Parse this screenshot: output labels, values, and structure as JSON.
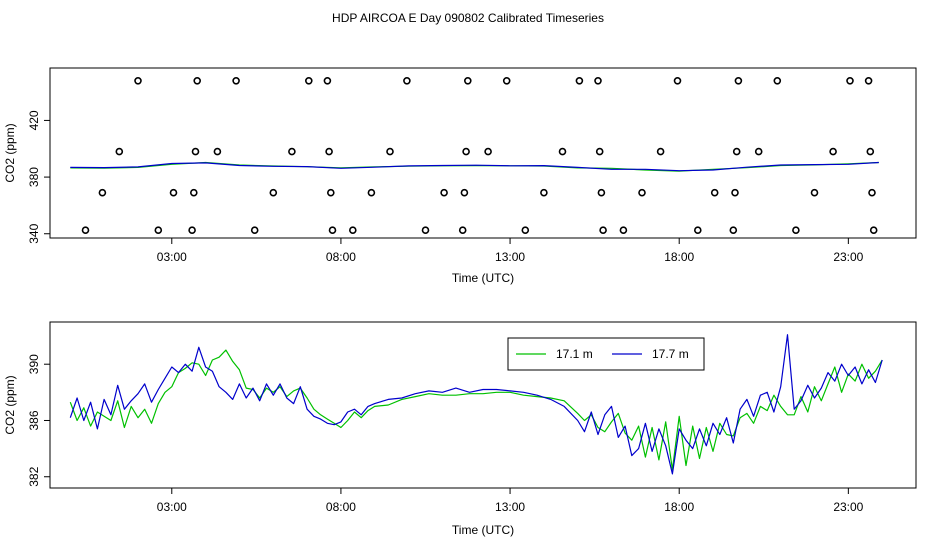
{
  "figure": {
    "title": "HDP AIRCOA E  Day 090802  Calibrated Timeseries"
  },
  "colors": {
    "series_a": "#00c000",
    "series_b": "#0000cc",
    "markers": "#000000",
    "frame": "#000000"
  },
  "chart_data": [
    {
      "id": "top",
      "type": "line",
      "title": "",
      "xlabel": "Time (UTC)",
      "ylabel": "CO2 (ppm)",
      "xlim": [
        -0.6,
        25.0
      ],
      "ylim": [
        337,
        457
      ],
      "x_ticks": [
        3,
        8,
        13,
        18,
        23
      ],
      "x_tick_labels": [
        "03:00",
        "08:00",
        "13:00",
        "18:00",
        "23:00"
      ],
      "y_ticks": [
        340,
        380,
        420
      ],
      "y_tick_labels": [
        "340",
        "380",
        "420"
      ],
      "series": [
        {
          "name": "17.1 m",
          "color": "#00c000",
          "x": [
            0.0,
            1.0,
            2.0,
            3.0,
            4.0,
            5.0,
            6.0,
            7.0,
            8.0,
            9.0,
            10.0,
            11.0,
            12.0,
            13.0,
            14.0,
            15.0,
            16.0,
            17.0,
            18.0,
            19.0,
            20.0,
            21.0,
            22.0,
            23.0,
            23.9
          ],
          "values": [
            386.5,
            386.3,
            386.8,
            389.0,
            390.3,
            388.5,
            387.8,
            387.3,
            386.5,
            387.2,
            387.7,
            388.0,
            388.1,
            388.0,
            387.8,
            386.5,
            386.2,
            385.0,
            384.2,
            385.5,
            386.6,
            388.2,
            388.6,
            389.4,
            390.3
          ]
        },
        {
          "name": "17.7 m",
          "color": "#0000cc",
          "x": [
            0.0,
            1.0,
            2.0,
            3.0,
            4.0,
            5.0,
            6.0,
            7.0,
            8.0,
            9.0,
            10.0,
            11.0,
            12.0,
            13.0,
            14.0,
            15.0,
            16.0,
            17.0,
            18.0,
            19.0,
            20.0,
            21.0,
            22.0,
            23.0,
            23.9
          ],
          "values": [
            386.8,
            386.7,
            387.2,
            389.6,
            390.0,
            388.2,
            387.6,
            387.4,
            386.2,
            387.0,
            387.9,
            388.2,
            388.4,
            388.0,
            388.1,
            386.8,
            385.5,
            385.5,
            384.5,
            385.0,
            387.0,
            388.5,
            388.8,
            389.0,
            390.3
          ]
        }
      ],
      "markers": {
        "shape": "open-circle",
        "points": [
          {
            "x": 0.45,
            "y": 342.5
          },
          {
            "x": 0.95,
            "y": 369
          },
          {
            "x": 1.45,
            "y": 398
          },
          {
            "x": 2.0,
            "y": 448
          },
          {
            "x": 2.6,
            "y": 342.5
          },
          {
            "x": 3.05,
            "y": 369
          },
          {
            "x": 3.6,
            "y": 342.5
          },
          {
            "x": 3.65,
            "y": 369
          },
          {
            "x": 3.7,
            "y": 398
          },
          {
            "x": 3.75,
            "y": 448
          },
          {
            "x": 4.35,
            "y": 398
          },
          {
            "x": 4.9,
            "y": 448
          },
          {
            "x": 5.45,
            "y": 342.5
          },
          {
            "x": 6.0,
            "y": 369
          },
          {
            "x": 6.55,
            "y": 398
          },
          {
            "x": 7.05,
            "y": 448
          },
          {
            "x": 7.6,
            "y": 448
          },
          {
            "x": 7.65,
            "y": 398
          },
          {
            "x": 7.7,
            "y": 369
          },
          {
            "x": 7.75,
            "y": 342.5
          },
          {
            "x": 8.35,
            "y": 342.5
          },
          {
            "x": 8.9,
            "y": 369
          },
          {
            "x": 9.45,
            "y": 398
          },
          {
            "x": 9.95,
            "y": 448
          },
          {
            "x": 10.5,
            "y": 342.5
          },
          {
            "x": 11.05,
            "y": 369
          },
          {
            "x": 11.6,
            "y": 342.5
          },
          {
            "x": 11.65,
            "y": 369
          },
          {
            "x": 11.7,
            "y": 398
          },
          {
            "x": 11.75,
            "y": 448
          },
          {
            "x": 12.35,
            "y": 398
          },
          {
            "x": 12.9,
            "y": 448
          },
          {
            "x": 13.45,
            "y": 342.5
          },
          {
            "x": 14.0,
            "y": 369
          },
          {
            "x": 14.55,
            "y": 398
          },
          {
            "x": 15.05,
            "y": 448
          },
          {
            "x": 15.6,
            "y": 448
          },
          {
            "x": 15.65,
            "y": 398
          },
          {
            "x": 15.7,
            "y": 369
          },
          {
            "x": 15.75,
            "y": 342.5
          },
          {
            "x": 16.35,
            "y": 342.5
          },
          {
            "x": 16.9,
            "y": 369
          },
          {
            "x": 17.45,
            "y": 398
          },
          {
            "x": 17.95,
            "y": 448
          },
          {
            "x": 18.55,
            "y": 342.5
          },
          {
            "x": 19.05,
            "y": 369
          },
          {
            "x": 19.6,
            "y": 342.5
          },
          {
            "x": 19.65,
            "y": 369
          },
          {
            "x": 19.7,
            "y": 398
          },
          {
            "x": 19.75,
            "y": 448
          },
          {
            "x": 20.35,
            "y": 398
          },
          {
            "x": 20.9,
            "y": 448
          },
          {
            "x": 21.45,
            "y": 342.5
          },
          {
            "x": 22.0,
            "y": 369
          },
          {
            "x": 22.55,
            "y": 398
          },
          {
            "x": 23.05,
            "y": 448
          },
          {
            "x": 23.6,
            "y": 448
          },
          {
            "x": 23.65,
            "y": 398
          },
          {
            "x": 23.7,
            "y": 369
          },
          {
            "x": 23.75,
            "y": 342.5
          }
        ]
      }
    },
    {
      "id": "bottom",
      "type": "line",
      "title": "",
      "xlabel": "Time (UTC)",
      "ylabel": "CO2 (ppm)",
      "xlim": [
        -0.6,
        25.0
      ],
      "ylim": [
        381.2,
        393.0
      ],
      "x_ticks": [
        3,
        8,
        13,
        18,
        23
      ],
      "x_tick_labels": [
        "03:00",
        "08:00",
        "13:00",
        "18:00",
        "23:00"
      ],
      "y_ticks": [
        382,
        386,
        390
      ],
      "y_tick_labels": [
        "382",
        "386",
        "390"
      ],
      "legend": {
        "position": "top-right",
        "entries": [
          {
            "label": "17.1 m",
            "color": "#00c000"
          },
          {
            "label": "17.7 m",
            "color": "#0000cc"
          }
        ]
      },
      "series": [
        {
          "name": "17.1 m",
          "color": "#00c000",
          "x": [
            0.0,
            0.2,
            0.4,
            0.6,
            0.8,
            1.0,
            1.2,
            1.4,
            1.6,
            1.8,
            2.0,
            2.2,
            2.4,
            2.6,
            2.8,
            3.0,
            3.2,
            3.4,
            3.6,
            3.8,
            4.0,
            4.2,
            4.4,
            4.6,
            4.8,
            5.0,
            5.2,
            5.4,
            5.6,
            5.8,
            6.0,
            6.2,
            6.4,
            6.6,
            6.8,
            7.0,
            7.2,
            7.4,
            7.6,
            7.8,
            8.0,
            8.2,
            8.4,
            8.6,
            8.8,
            9.0,
            9.4,
            9.8,
            10.2,
            10.6,
            11.0,
            11.4,
            11.8,
            12.2,
            12.6,
            13.0,
            13.4,
            13.8,
            14.2,
            14.6,
            15.0,
            15.2,
            15.4,
            15.6,
            15.8,
            16.0,
            16.2,
            16.4,
            16.6,
            16.8,
            17.0,
            17.2,
            17.4,
            17.6,
            17.8,
            18.0,
            18.2,
            18.4,
            18.6,
            18.8,
            19.0,
            19.2,
            19.4,
            19.6,
            19.8,
            20.0,
            20.2,
            20.4,
            20.6,
            20.8,
            21.0,
            21.2,
            21.4,
            21.6,
            21.8,
            22.0,
            22.2,
            22.4,
            22.6,
            22.8,
            23.0,
            23.2,
            23.4,
            23.6,
            23.8,
            24.0
          ],
          "values": [
            387.3,
            386.0,
            386.9,
            385.6,
            386.6,
            386.3,
            386.0,
            387.4,
            385.5,
            387.0,
            386.2,
            386.8,
            385.8,
            387.2,
            388.0,
            388.4,
            389.4,
            389.7,
            390.1,
            390.0,
            389.2,
            390.3,
            390.5,
            391.0,
            390.2,
            389.6,
            388.3,
            388.2,
            387.6,
            388.3,
            388.0,
            388.4,
            387.7,
            388.1,
            388.3,
            387.6,
            386.8,
            386.4,
            386.1,
            385.8,
            385.5,
            386.0,
            386.6,
            386.2,
            386.7,
            387.0,
            387.1,
            387.5,
            387.7,
            387.9,
            387.8,
            387.8,
            387.9,
            387.9,
            388.0,
            388.0,
            387.8,
            387.7,
            387.6,
            387.4,
            386.5,
            386.0,
            386.4,
            385.5,
            385.2,
            385.9,
            386.5,
            385.1,
            384.6,
            385.6,
            383.4,
            385.5,
            383.2,
            385.9,
            382.5,
            386.3,
            382.8,
            385.6,
            383.3,
            385.5,
            383.8,
            385.8,
            385.0,
            384.9,
            386.2,
            386.5,
            385.8,
            387.0,
            386.7,
            387.8,
            387.0,
            386.4,
            386.4,
            387.7,
            386.6,
            388.4,
            387.4,
            388.6,
            389.8,
            388.0,
            389.3,
            388.8,
            390.0,
            389.0,
            389.5,
            390.3
          ]
        },
        {
          "name": "17.7 m",
          "color": "#0000cc",
          "x": [
            0.0,
            0.2,
            0.4,
            0.6,
            0.8,
            1.0,
            1.2,
            1.4,
            1.6,
            1.8,
            2.0,
            2.2,
            2.4,
            2.6,
            2.8,
            3.0,
            3.2,
            3.4,
            3.6,
            3.8,
            4.0,
            4.2,
            4.4,
            4.6,
            4.8,
            5.0,
            5.2,
            5.4,
            5.6,
            5.8,
            6.0,
            6.2,
            6.4,
            6.6,
            6.8,
            7.0,
            7.2,
            7.4,
            7.6,
            7.8,
            8.0,
            8.2,
            8.4,
            8.6,
            8.8,
            9.0,
            9.4,
            9.8,
            10.2,
            10.6,
            11.0,
            11.4,
            11.8,
            12.2,
            12.6,
            13.0,
            13.4,
            13.8,
            14.2,
            14.6,
            15.0,
            15.2,
            15.4,
            15.6,
            15.8,
            16.0,
            16.2,
            16.4,
            16.6,
            16.8,
            17.0,
            17.2,
            17.4,
            17.6,
            17.8,
            18.0,
            18.2,
            18.4,
            18.6,
            18.8,
            19.0,
            19.2,
            19.4,
            19.6,
            19.8,
            20.0,
            20.2,
            20.4,
            20.6,
            20.8,
            21.0,
            21.2,
            21.4,
            21.6,
            21.8,
            22.0,
            22.2,
            22.4,
            22.6,
            22.8,
            23.0,
            23.2,
            23.4,
            23.6,
            23.8,
            24.0
          ],
          "values": [
            386.2,
            387.6,
            386.0,
            387.3,
            385.4,
            387.5,
            386.4,
            388.5,
            386.8,
            387.4,
            387.9,
            388.6,
            387.3,
            388.2,
            389.0,
            389.8,
            389.4,
            390.0,
            389.5,
            391.2,
            389.8,
            389.5,
            388.4,
            388.0,
            387.5,
            388.6,
            387.6,
            388.3,
            387.4,
            388.6,
            387.8,
            388.6,
            387.6,
            387.2,
            388.4,
            386.8,
            386.3,
            386.1,
            385.8,
            385.7,
            385.9,
            386.6,
            386.8,
            386.4,
            387.0,
            387.2,
            387.5,
            387.6,
            387.9,
            388.1,
            388.0,
            388.3,
            388.0,
            388.2,
            388.2,
            388.1,
            388.0,
            387.8,
            387.5,
            387.0,
            386.0,
            385.2,
            386.6,
            385.0,
            386.4,
            387.0,
            384.8,
            385.6,
            383.5,
            384.0,
            385.8,
            383.8,
            385.4,
            384.2,
            382.2,
            385.4,
            384.6,
            384.0,
            385.4,
            384.2,
            385.8,
            385.0,
            386.2,
            384.4,
            386.8,
            387.5,
            386.3,
            387.8,
            388.0,
            386.6,
            388.4,
            392.1,
            386.8,
            387.4,
            388.5,
            387.6,
            388.3,
            389.4,
            388.8,
            390.0,
            389.2,
            389.8,
            388.6,
            389.6,
            388.7,
            390.3
          ]
        }
      ]
    }
  ]
}
